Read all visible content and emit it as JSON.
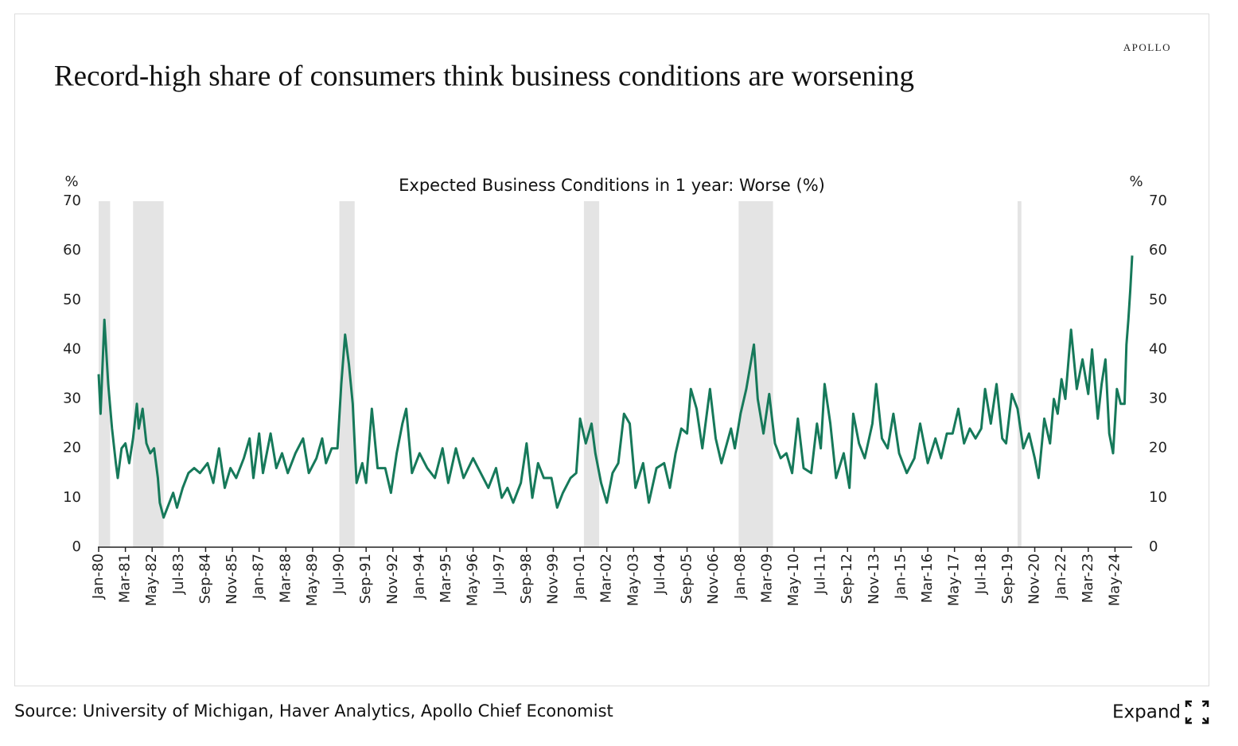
{
  "brand": "APOLLO",
  "source": "Source: University of Michigan, Haver Analytics, Apollo Chief Economist",
  "expand_button": "Expand",
  "chart_data": {
    "type": "line",
    "title": "Record-high share of consumers think business conditions are worsening",
    "subtitle": "Expected Business Conditions in 1 year: Worse (%)",
    "y_label": "%",
    "y2_label": "%",
    "color": "#16795a",
    "shade_color": "#e4e4e4",
    "recessions": [
      [
        "1980-01",
        "1980-07"
      ],
      [
        "1981-07",
        "1982-11"
      ],
      [
        "1990-07",
        "1991-03"
      ],
      [
        "2001-03",
        "2001-11"
      ],
      [
        "2007-12",
        "2009-06"
      ],
      [
        "2020-02",
        "2020-04"
      ]
    ],
    "xlim": [
      "1980-01",
      "2025-02"
    ],
    "xticks": [
      {
        "value": "1980-01",
        "label": "Jan-80"
      },
      {
        "value": "1981-03",
        "label": "Mar-81"
      },
      {
        "value": "1982-05",
        "label": "May-82"
      },
      {
        "value": "1983-07",
        "label": "Jul-83"
      },
      {
        "value": "1984-09",
        "label": "Sep-84"
      },
      {
        "value": "1985-11",
        "label": "Nov-85"
      },
      {
        "value": "1987-01",
        "label": "Jan-87"
      },
      {
        "value": "1988-03",
        "label": "Mar-88"
      },
      {
        "value": "1989-05",
        "label": "May-89"
      },
      {
        "value": "1990-07",
        "label": "Jul-90"
      },
      {
        "value": "1991-09",
        "label": "Sep-91"
      },
      {
        "value": "1992-11",
        "label": "Nov-92"
      },
      {
        "value": "1994-01",
        "label": "Jan-94"
      },
      {
        "value": "1995-03",
        "label": "Mar-95"
      },
      {
        "value": "1996-05",
        "label": "May-96"
      },
      {
        "value": "1997-07",
        "label": "Jul-97"
      },
      {
        "value": "1998-09",
        "label": "Sep-98"
      },
      {
        "value": "1999-11",
        "label": "Nov-99"
      },
      {
        "value": "2001-01",
        "label": "Jan-01"
      },
      {
        "value": "2002-03",
        "label": "Mar-02"
      },
      {
        "value": "2003-05",
        "label": "May-03"
      },
      {
        "value": "2004-07",
        "label": "Jul-04"
      },
      {
        "value": "2005-09",
        "label": "Sep-05"
      },
      {
        "value": "2006-11",
        "label": "Nov-06"
      },
      {
        "value": "2008-01",
        "label": "Jan-08"
      },
      {
        "value": "2009-03",
        "label": "Mar-09"
      },
      {
        "value": "2010-05",
        "label": "May-10"
      },
      {
        "value": "2011-07",
        "label": "Jul-11"
      },
      {
        "value": "2012-09",
        "label": "Sep-12"
      },
      {
        "value": "2013-11",
        "label": "Nov-13"
      },
      {
        "value": "2015-01",
        "label": "Jan-15"
      },
      {
        "value": "2016-03",
        "label": "Mar-16"
      },
      {
        "value": "2017-05",
        "label": "May-17"
      },
      {
        "value": "2018-07",
        "label": "Jul-18"
      },
      {
        "value": "2019-09",
        "label": "Sep-19"
      },
      {
        "value": "2020-11",
        "label": "Nov-20"
      },
      {
        "value": "2022-01",
        "label": "Jan-22"
      },
      {
        "value": "2023-03",
        "label": "Mar-23"
      },
      {
        "value": "2024-05",
        "label": "May-24"
      }
    ],
    "ylim": [
      0,
      70
    ],
    "yticks": [
      0,
      10,
      20,
      30,
      40,
      50,
      60,
      70
    ],
    "y2lim": [
      0,
      70
    ],
    "y2ticks": [
      0,
      10,
      20,
      30,
      40,
      50,
      60,
      70
    ],
    "x": [
      "1980-01",
      "1980-02",
      "1980-04",
      "1980-06",
      "1980-08",
      "1980-10",
      "1980-11",
      "1981-01",
      "1981-03",
      "1981-05",
      "1981-07",
      "1981-09",
      "1981-10",
      "1981-12",
      "1982-02",
      "1982-04",
      "1982-06",
      "1982-08",
      "1982-09",
      "1982-11",
      "1983-02",
      "1983-04",
      "1983-06",
      "1983-09",
      "1983-12",
      "1984-03",
      "1984-06",
      "1984-10",
      "1985-01",
      "1985-04",
      "1985-07",
      "1985-10",
      "1986-01",
      "1986-05",
      "1986-08",
      "1986-10",
      "1987-01",
      "1987-03",
      "1987-07",
      "1987-10",
      "1988-01",
      "1988-04",
      "1988-08",
      "1988-12",
      "1989-03",
      "1989-07",
      "1989-10",
      "1989-12",
      "1990-03",
      "1990-06",
      "1990-08",
      "1990-10",
      "1990-12",
      "1991-02",
      "1991-04",
      "1991-07",
      "1991-09",
      "1991-12",
      "1992-03",
      "1992-07",
      "1992-10",
      "1993-01",
      "1993-04",
      "1993-06",
      "1993-09",
      "1994-01",
      "1994-05",
      "1994-09",
      "1995-01",
      "1995-04",
      "1995-08",
      "1995-12",
      "1996-05",
      "1996-09",
      "1997-01",
      "1997-05",
      "1997-08",
      "1997-11",
      "1998-02",
      "1998-06",
      "1998-09",
      "1998-12",
      "1999-03",
      "1999-06",
      "1999-10",
      "2000-01",
      "2000-04",
      "2000-08",
      "2000-11",
      "2001-01",
      "2001-04",
      "2001-07",
      "2001-09",
      "2001-12",
      "2002-03",
      "2002-06",
      "2002-09",
      "2002-12",
      "2003-03",
      "2003-06",
      "2003-10",
      "2004-01",
      "2004-05",
      "2004-09",
      "2004-12",
      "2005-03",
      "2005-06",
      "2005-09",
      "2005-11",
      "2006-02",
      "2006-05",
      "2006-09",
      "2006-12",
      "2007-03",
      "2007-08",
      "2007-10",
      "2008-01",
      "2008-04",
      "2008-08",
      "2008-10",
      "2009-01",
      "2009-04",
      "2009-07",
      "2009-10",
      "2010-01",
      "2010-04",
      "2010-07",
      "2010-10",
      "2011-02",
      "2011-05",
      "2011-07",
      "2011-09",
      "2011-12",
      "2012-03",
      "2012-07",
      "2012-10",
      "2012-12",
      "2013-03",
      "2013-06",
      "2013-10",
      "2013-12",
      "2014-03",
      "2014-06",
      "2014-09",
      "2014-12",
      "2015-04",
      "2015-08",
      "2015-11",
      "2016-03",
      "2016-07",
      "2016-10",
      "2017-01",
      "2017-04",
      "2017-07",
      "2017-10",
      "2018-01",
      "2018-04",
      "2018-07",
      "2018-09",
      "2018-12",
      "2019-03",
      "2019-06",
      "2019-08",
      "2019-11",
      "2020-02",
      "2020-05",
      "2020-08",
      "2020-11",
      "2021-01",
      "2021-04",
      "2021-07",
      "2021-09",
      "2021-11",
      "2022-01",
      "2022-03",
      "2022-06",
      "2022-09",
      "2022-12",
      "2023-03",
      "2023-05",
      "2023-08",
      "2023-10",
      "2023-12",
      "2024-02",
      "2024-04",
      "2024-06",
      "2024-08",
      "2024-10",
      "2024-11",
      "2024-12",
      "2025-01",
      "2025-02"
    ],
    "series": [
      {
        "name": "Expected Business Conditions in 1 year: Worse",
        "color": "#16795a",
        "values": [
          35,
          27,
          46,
          33,
          24,
          17,
          14,
          20,
          21,
          17,
          22,
          29,
          24,
          28,
          21,
          19,
          20,
          14,
          9,
          6,
          9,
          11,
          8,
          12,
          15,
          16,
          15,
          17,
          13,
          20,
          12,
          16,
          14,
          18,
          22,
          14,
          23,
          15,
          23,
          16,
          19,
          15,
          19,
          22,
          15,
          18,
          22,
          17,
          20,
          20,
          33,
          43,
          37,
          29,
          13,
          17,
          13,
          28,
          16,
          16,
          11,
          19,
          25,
          28,
          15,
          19,
          16,
          14,
          20,
          13,
          20,
          14,
          18,
          15,
          12,
          16,
          10,
          12,
          9,
          13,
          21,
          10,
          17,
          14,
          14,
          8,
          11,
          14,
          15,
          26,
          21,
          25,
          19,
          13,
          9,
          15,
          17,
          27,
          25,
          12,
          17,
          9,
          16,
          17,
          12,
          19,
          24,
          23,
          32,
          28,
          20,
          32,
          22,
          17,
          24,
          20,
          27,
          32,
          41,
          30,
          23,
          31,
          21,
          18,
          19,
          15,
          26,
          16,
          15,
          25,
          20,
          33,
          25,
          14,
          19,
          12,
          27,
          21,
          18,
          25,
          33,
          22,
          20,
          27,
          19,
          15,
          18,
          25,
          17,
          22,
          18,
          23,
          23,
          28,
          21,
          24,
          22,
          24,
          32,
          25,
          33,
          22,
          21,
          31,
          28,
          20,
          23,
          18,
          14,
          26,
          21,
          30,
          27,
          34,
          30,
          44,
          32,
          38,
          31,
          40,
          26,
          33,
          38,
          23,
          19,
          32,
          29,
          29,
          41,
          46,
          52,
          59
        ]
      }
    ]
  }
}
